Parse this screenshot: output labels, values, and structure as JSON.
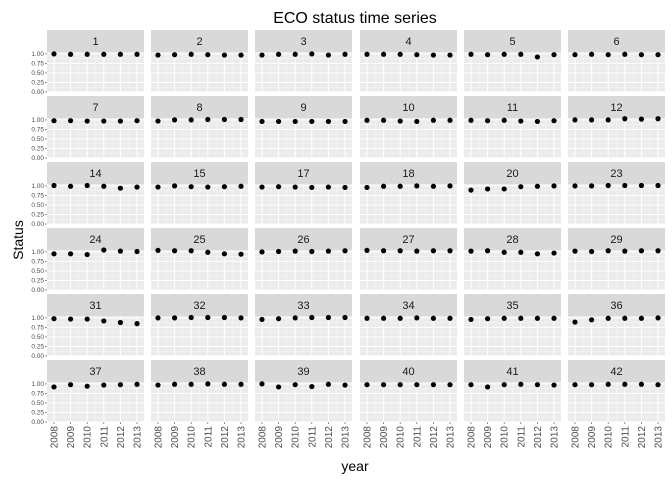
{
  "chart_data": {
    "type": "scatter",
    "title": "ECO status time series",
    "xlabel": "year",
    "ylabel": "Status",
    "x": [
      2008,
      2009,
      2010,
      2011,
      2012,
      2013
    ],
    "x_tick_labels": [
      "2008",
      "2009",
      "2010",
      "2011",
      "2012",
      "2013"
    ],
    "ylim": [
      0,
      1.05
    ],
    "y_ticks": [
      0.0,
      0.25,
      0.5,
      0.75,
      1.0
    ],
    "y_tick_labels": [
      "0.00",
      "0.25",
      "0.50",
      "0.75",
      "1.00"
    ],
    "facet_columns": 6,
    "colors": {
      "panel_background": "#ebebeb",
      "strip_background": "#d9d9d9",
      "gridline": "#ffffff",
      "point": "#000000"
    },
    "grid": true,
    "panels": [
      {
        "label": "1",
        "values": [
          1.0,
          0.99,
          0.99,
          0.99,
          0.99,
          0.99
        ]
      },
      {
        "label": "2",
        "values": [
          0.97,
          0.98,
          0.99,
          0.98,
          0.97,
          0.97
        ]
      },
      {
        "label": "3",
        "values": [
          0.97,
          0.99,
          0.99,
          1.0,
          0.97,
          0.99
        ]
      },
      {
        "label": "4",
        "values": [
          0.99,
          0.99,
          0.99,
          0.98,
          0.97,
          0.97
        ]
      },
      {
        "label": "5",
        "values": [
          0.99,
          0.98,
          0.99,
          0.99,
          0.92,
          0.98
        ]
      },
      {
        "label": "6",
        "values": [
          0.98,
          0.99,
          0.98,
          0.99,
          0.98,
          0.98
        ]
      },
      {
        "label": "7",
        "values": [
          0.98,
          0.98,
          0.97,
          0.97,
          0.97,
          0.98
        ]
      },
      {
        "label": "8",
        "values": [
          0.97,
          1.0,
          1.0,
          1.01,
          1.01,
          1.01
        ]
      },
      {
        "label": "9",
        "values": [
          0.96,
          0.96,
          0.96,
          0.96,
          0.96,
          0.96
        ]
      },
      {
        "label": "10",
        "values": [
          0.99,
          0.99,
          0.97,
          0.96,
          0.99,
          0.99
        ]
      },
      {
        "label": "11",
        "values": [
          0.99,
          0.98,
          0.99,
          0.97,
          0.96,
          0.98
        ]
      },
      {
        "label": "12",
        "values": [
          1.0,
          1.0,
          1.0,
          1.03,
          1.02,
          1.03
        ]
      },
      {
        "label": "14",
        "values": [
          1.01,
          0.99,
          1.01,
          0.99,
          0.94,
          0.97
        ]
      },
      {
        "label": "15",
        "values": [
          0.97,
          1.0,
          0.98,
          0.97,
          0.98,
          0.99
        ]
      },
      {
        "label": "17",
        "values": [
          0.97,
          0.98,
          0.97,
          0.96,
          0.97,
          0.96
        ]
      },
      {
        "label": "18",
        "values": [
          0.96,
          0.99,
          0.99,
          1.0,
          0.99,
          1.0
        ]
      },
      {
        "label": "20",
        "values": [
          0.89,
          0.92,
          0.92,
          0.98,
          0.99,
          1.0
        ]
      },
      {
        "label": "23",
        "values": [
          1.0,
          1.0,
          1.01,
          1.01,
          1.01,
          1.01
        ]
      },
      {
        "label": "24",
        "values": [
          0.95,
          0.95,
          0.93,
          1.05,
          1.02,
          1.01
        ]
      },
      {
        "label": "25",
        "values": [
          1.04,
          1.03,
          1.03,
          0.99,
          0.95,
          0.94
        ]
      },
      {
        "label": "26",
        "values": [
          1.0,
          1.01,
          1.02,
          1.01,
          1.02,
          1.03
        ]
      },
      {
        "label": "27",
        "values": [
          1.04,
          1.03,
          1.03,
          1.02,
          1.03,
          1.03
        ]
      },
      {
        "label": "28",
        "values": [
          1.02,
          1.03,
          0.99,
          0.99,
          0.95,
          0.97
        ]
      },
      {
        "label": "29",
        "values": [
          1.02,
          1.01,
          1.03,
          1.02,
          1.03,
          1.03
        ]
      },
      {
        "label": "31",
        "values": [
          0.98,
          0.97,
          0.97,
          0.92,
          0.88,
          0.85
        ]
      },
      {
        "label": "32",
        "values": [
          1.0,
          1.0,
          1.01,
          1.01,
          1.01,
          1.0
        ]
      },
      {
        "label": "33",
        "values": [
          0.96,
          0.98,
          1.0,
          1.01,
          1.01,
          1.01
        ]
      },
      {
        "label": "34",
        "values": [
          0.99,
          0.99,
          0.99,
          1.0,
          0.99,
          0.99
        ]
      },
      {
        "label": "35",
        "values": [
          0.96,
          0.98,
          0.99,
          0.99,
          0.99,
          0.99
        ]
      },
      {
        "label": "36",
        "values": [
          0.89,
          0.95,
          0.99,
          0.99,
          0.99,
          1.0
        ]
      },
      {
        "label": "37",
        "values": [
          0.92,
          0.98,
          0.94,
          0.97,
          0.98,
          0.99
        ]
      },
      {
        "label": "38",
        "values": [
          0.97,
          0.99,
          0.99,
          1.0,
          0.99,
          0.99
        ]
      },
      {
        "label": "39",
        "values": [
          1.0,
          0.92,
          0.98,
          0.93,
          0.99,
          0.97
        ]
      },
      {
        "label": "40",
        "values": [
          0.98,
          0.98,
          0.98,
          0.98,
          0.98,
          0.98
        ]
      },
      {
        "label": "41",
        "values": [
          0.98,
          0.92,
          0.98,
          0.99,
          0.98,
          0.97
        ]
      },
      {
        "label": "42",
        "values": [
          0.98,
          0.98,
          0.99,
          0.99,
          0.99,
          0.98
        ]
      }
    ]
  }
}
